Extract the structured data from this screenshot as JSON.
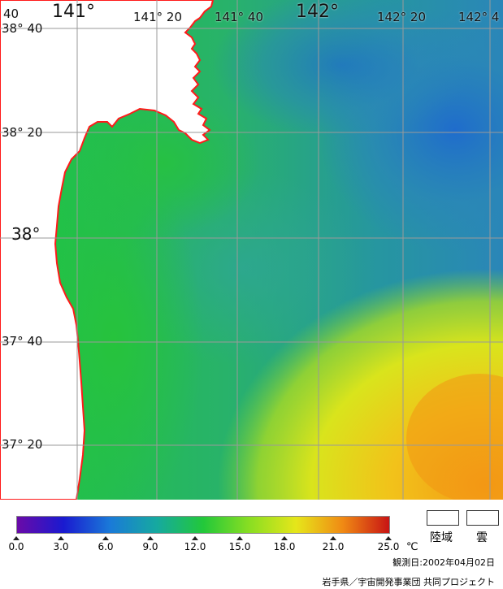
{
  "map": {
    "lon_labels": [
      {
        "text": "40",
        "cls": "lon-minor"
      },
      {
        "text": "141°",
        "cls": "lon-major"
      },
      {
        "text": "141° 20",
        "cls": "lon-minor"
      },
      {
        "text": "141° 40",
        "cls": "lon-minor"
      },
      {
        "text": "142°",
        "cls": "lon-major"
      },
      {
        "text": "142° 20",
        "cls": "lon-minor"
      },
      {
        "text": "142° 4",
        "cls": "lon-minor"
      }
    ],
    "lat_labels": [
      {
        "text": "38° 40",
        "cls": "lat-minor"
      },
      {
        "text": "38° 20",
        "cls": "lat-minor"
      },
      {
        "text": "38°",
        "cls": "lat-major"
      },
      {
        "text": "37° 40",
        "cls": "lat-minor"
      },
      {
        "text": "37° 20",
        "cls": "lat-minor"
      }
    ],
    "land_color": "#ffffff",
    "coast_color": "#ff1a1a",
    "grid_color": "#9a9a9a"
  },
  "legend": {
    "ticks": [
      "0.0",
      "3.0",
      "6.0",
      "9.0",
      "12.0",
      "15.0",
      "18.0",
      "21.0",
      "25.0"
    ],
    "unit": "℃",
    "land_label": "陸域",
    "cloud_label": "雲",
    "colors": [
      "#6a0aa8",
      "#1a1ad0",
      "#1a7ad8",
      "#16a9a0",
      "#22c83a",
      "#8ade22",
      "#e6e61a",
      "#f08a14",
      "#c81414"
    ]
  },
  "footer": {
    "observation_date": "観測日:2002年04月02日",
    "credit": "岩手県／宇宙開発事業団 共同プロジェクト"
  }
}
